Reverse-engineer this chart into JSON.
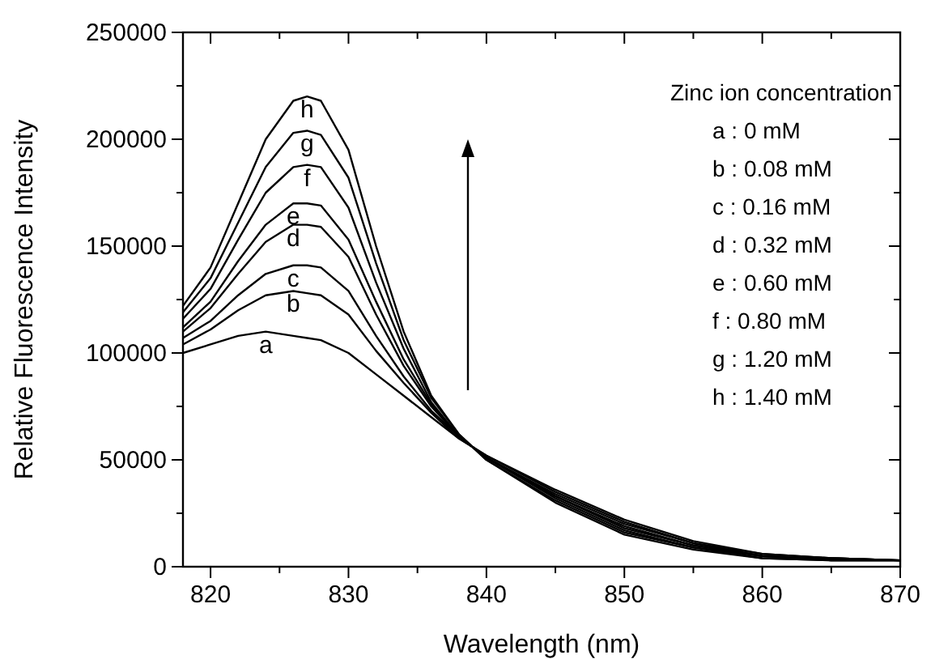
{
  "chart_data": {
    "type": "line",
    "xlabel": "Wavelength (nm)",
    "ylabel": "Relative Fluorescence Intensity",
    "x": [
      818,
      820,
      822,
      824,
      826,
      827,
      828,
      830,
      832,
      834,
      836,
      838,
      840,
      845,
      850,
      855,
      860,
      865,
      870
    ],
    "series": [
      {
        "name": "a",
        "color": "#000000",
        "values": [
          100000,
          104000,
          108000,
          110000,
          108000,
          107000,
          106000,
          100000,
          90000,
          80000,
          70000,
          60000,
          52000,
          36000,
          22000,
          12000,
          6000,
          4000,
          3000
        ]
      },
      {
        "name": "b",
        "color": "#000000",
        "values": [
          104000,
          111000,
          120000,
          127000,
          129000,
          128000,
          127000,
          118000,
          101000,
          86000,
          72000,
          60000,
          52000,
          35000,
          21000,
          11000,
          6000,
          4000,
          3000
        ]
      },
      {
        "name": "c",
        "color": "#000000",
        "values": [
          107000,
          115000,
          127000,
          137000,
          141000,
          141000,
          140000,
          129000,
          108000,
          89000,
          73000,
          61000,
          51000,
          34000,
          20000,
          11000,
          5000,
          4000,
          3000
        ]
      },
      {
        "name": "d",
        "color": "#000000",
        "values": [
          110000,
          121000,
          137000,
          152000,
          160000,
          160000,
          159000,
          145000,
          118000,
          94000,
          75000,
          61000,
          51000,
          33000,
          19000,
          10000,
          5000,
          4000,
          3000
        ]
      },
      {
        "name": "e",
        "color": "#000000",
        "values": [
          112000,
          124000,
          143000,
          160000,
          170000,
          170000,
          169000,
          153000,
          124000,
          97000,
          76000,
          61000,
          51000,
          33000,
          18000,
          10000,
          5000,
          3000,
          3000
        ]
      },
      {
        "name": "f",
        "color": "#000000",
        "values": [
          116000,
          130000,
          153000,
          175000,
          187000,
          188000,
          187000,
          168000,
          133000,
          102000,
          77000,
          61000,
          51000,
          32000,
          17000,
          9000,
          5000,
          3000,
          3000
        ]
      },
      {
        "name": "g",
        "color": "#000000",
        "values": [
          119000,
          135000,
          161000,
          187000,
          203000,
          204000,
          202000,
          182000,
          142000,
          106000,
          79000,
          62000,
          50000,
          31000,
          16000,
          9000,
          4000,
          3000,
          3000
        ]
      },
      {
        "name": "h",
        "color": "#000000",
        "values": [
          122000,
          140000,
          170000,
          200000,
          218000,
          220000,
          218000,
          195000,
          150000,
          110000,
          80000,
          62000,
          50000,
          30000,
          15000,
          8000,
          4000,
          3000,
          3000
        ]
      }
    ],
    "xlim": [
      818,
      870
    ],
    "xticks": [
      820,
      {
        "value": 825,
        "label": null
      },
      830,
      {
        "value": 835,
        "label": null
      },
      840,
      {
        "value": 845,
        "label": null
      },
      850,
      {
        "value": 855,
        "label": null
      },
      860,
      {
        "value": 865,
        "label": null
      },
      870
    ],
    "ylim": [
      0,
      250000
    ],
    "yticks": [
      0,
      {
        "value": 25000,
        "label": null
      },
      50000,
      {
        "value": 75000,
        "label": null
      },
      100000,
      {
        "value": 125000,
        "label": null
      },
      150000,
      {
        "value": 175000,
        "label": null
      },
      200000,
      {
        "value": 225000,
        "label": null
      },
      250000
    ],
    "annotations": [
      "Zinc ion concentration",
      "a : 0 mM",
      "b : 0.08 mM",
      "c : 0.16 mM",
      "d : 0.32 mM",
      "e : 0.60 mM",
      "f : 0.80 mM",
      "g : 1.20 mM",
      "h : 1.40 mM"
    ],
    "grid": false,
    "marker": "none",
    "line_style": "solid"
  }
}
